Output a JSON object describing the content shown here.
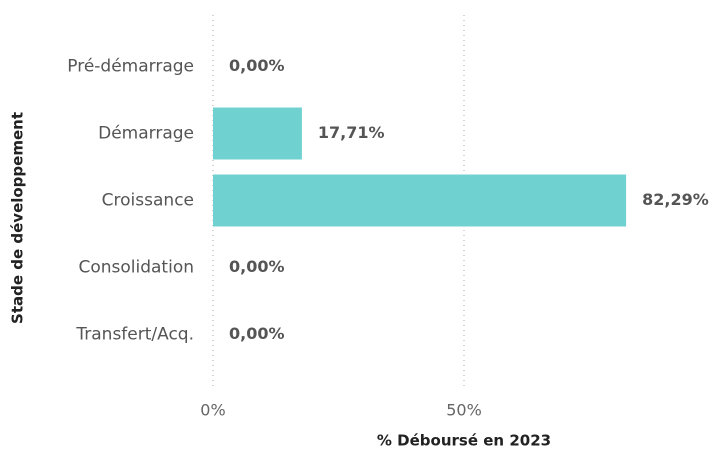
{
  "chart_data": {
    "type": "bar",
    "orientation": "horizontal",
    "categories": [
      "Pré-démarrage",
      "Démarrage",
      "Croissance",
      "Consolidation",
      "Transfert/Acq."
    ],
    "values": [
      0,
      17.71,
      82.29,
      0,
      0
    ],
    "value_labels": [
      "0,00%",
      "17,71%",
      "82,29%",
      "0,00%",
      "0,00%"
    ],
    "color": "#70d1d1",
    "xlim": [
      0,
      100
    ],
    "xticks": [
      {
        "value": 0,
        "label": "0%"
      },
      {
        "value": 50,
        "label": "50%"
      }
    ],
    "xlabel": "% Déboursé en 2023",
    "ylabel": "Stade de développement",
    "grid": true
  }
}
